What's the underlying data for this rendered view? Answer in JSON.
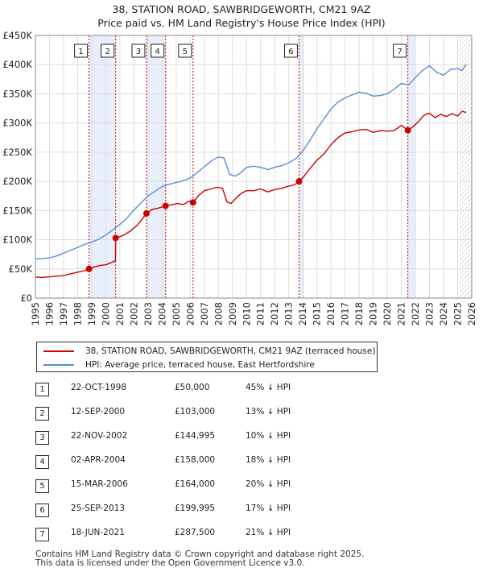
{
  "title_line1": "38, STATION ROAD, SAWBRIDGEWORTH, CM21 9AZ",
  "title_line2": "Price paid vs. HM Land Registry's House Price Index (HPI)",
  "colors": {
    "property": "#cc0000",
    "hpi": "#5b8fd0",
    "shade": "#e8effa",
    "marker_line": "#cc0000",
    "grid": "#dddddd"
  },
  "chart_data": {
    "type": "line",
    "title": "38, STATION ROAD, SAWBRIDGEWORTH, CM21 9AZ - Price paid vs. HM Land Registry's House Price Index (HPI)",
    "xlabel": "",
    "ylabel": "",
    "xlim": [
      1995,
      2026
    ],
    "ylim": [
      0,
      450000
    ],
    "grid": true,
    "y_ticks": [
      0,
      50000,
      100000,
      150000,
      200000,
      250000,
      300000,
      350000,
      400000,
      450000
    ],
    "y_tick_labels": [
      "£0",
      "£50K",
      "£100K",
      "£150K",
      "£200K",
      "£250K",
      "£300K",
      "£350K",
      "£400K",
      "£450K"
    ],
    "x_ticks": [
      1995,
      1996,
      1997,
      1998,
      1999,
      2000,
      2001,
      2002,
      2003,
      2004,
      2005,
      2006,
      2007,
      2008,
      2009,
      2010,
      2011,
      2012,
      2013,
      2014,
      2015,
      2016,
      2017,
      2018,
      2019,
      2020,
      2021,
      2022,
      2023,
      2024,
      2025,
      2026
    ],
    "x_tick_labels": [
      "1995",
      "1996",
      "1997",
      "1998",
      "1999",
      "2000",
      "2001",
      "2002",
      "2003",
      "2004",
      "2005",
      "2006",
      "2007",
      "2008",
      "2009",
      "2010",
      "2011",
      "2012",
      "2013",
      "2014",
      "2015",
      "2016",
      "2017",
      "2018",
      "2019",
      "2020",
      "2021",
      "2022",
      "2023",
      "2024",
      "2025",
      "2026"
    ],
    "shaded_ranges": [
      [
        1998.81,
        2000.7
      ],
      [
        2002.89,
        2004.25
      ],
      [
        2013.73,
        2014.1
      ],
      [
        2021.46,
        2022.0
      ]
    ],
    "hatch_from": 2025.1,
    "series": [
      {
        "name": "38, STATION ROAD, SAWBRIDGEWORTH, CM21 9AZ (terraced house)",
        "color": "#cc0000",
        "x": [
          1995.0,
          1995.5,
          1996.0,
          1996.5,
          1997.0,
          1997.5,
          1998.0,
          1998.5,
          1998.81,
          1999.2,
          1999.6,
          2000.0,
          2000.4,
          2000.69,
          2000.7,
          2001.2,
          2001.7,
          2002.2,
          2002.6,
          2002.89,
          2003.3,
          2003.7,
          2004.0,
          2004.25,
          2004.7,
          2005.1,
          2005.5,
          2005.9,
          2006.2,
          2006.6,
          2007.0,
          2007.5,
          2007.9,
          2008.3,
          2008.6,
          2008.9,
          2009.2,
          2009.6,
          2010.0,
          2010.5,
          2011.0,
          2011.5,
          2012.0,
          2012.5,
          2013.0,
          2013.4,
          2013.73,
          2014.1,
          2014.5,
          2015.0,
          2015.5,
          2016.0,
          2016.5,
          2017.0,
          2017.5,
          2018.0,
          2018.5,
          2019.0,
          2019.5,
          2020.0,
          2020.5,
          2021.0,
          2021.46,
          2021.8,
          2022.2,
          2022.6,
          2023.0,
          2023.4,
          2023.8,
          2024.2,
          2024.6,
          2025.0,
          2025.3,
          2025.6
        ],
        "values": [
          36000,
          35500,
          36500,
          37500,
          38500,
          41500,
          44500,
          47000,
          50000,
          53500,
          56000,
          57000,
          61000,
          64000,
          103000,
          107000,
          114000,
          124000,
          136000,
          144995,
          152000,
          154000,
          156000,
          158000,
          160000,
          162000,
          160000,
          166000,
          164000,
          176000,
          184000,
          187000,
          190000,
          188000,
          165000,
          162000,
          170000,
          179000,
          184000,
          184000,
          187000,
          182000,
          186000,
          188000,
          192000,
          194000,
          199995,
          209000,
          222000,
          236000,
          247000,
          263000,
          275000,
          283000,
          285000,
          288000,
          289000,
          284000,
          287000,
          286000,
          287000,
          296000,
          287500,
          293000,
          302000,
          313000,
          317000,
          309000,
          315000,
          311000,
          316000,
          312000,
          320000,
          318000
        ]
      },
      {
        "name": "HPI: Average price, terraced house, East Hertfordshire",
        "color": "#5b8fd0",
        "x": [
          1995.0,
          1995.5,
          1996.0,
          1996.5,
          1997.0,
          1997.5,
          1998.0,
          1998.5,
          1999.0,
          1999.5,
          2000.0,
          2000.5,
          2001.0,
          2001.5,
          2002.0,
          2002.5,
          2003.0,
          2003.5,
          2004.0,
          2004.5,
          2005.0,
          2005.5,
          2006.0,
          2006.5,
          2007.0,
          2007.5,
          2008.0,
          2008.4,
          2008.8,
          2009.2,
          2009.6,
          2010.0,
          2010.5,
          2011.0,
          2011.5,
          2012.0,
          2012.5,
          2013.0,
          2013.5,
          2014.0,
          2014.5,
          2015.0,
          2015.5,
          2016.0,
          2016.5,
          2017.0,
          2017.5,
          2018.0,
          2018.5,
          2019.0,
          2019.5,
          2020.0,
          2020.5,
          2021.0,
          2021.5,
          2022.0,
          2022.5,
          2023.0,
          2023.5,
          2024.0,
          2024.5,
          2025.0,
          2025.3,
          2025.6
        ],
        "values": [
          67000,
          67500,
          69000,
          72000,
          77000,
          82000,
          87000,
          92000,
          96000,
          101000,
          108000,
          117000,
          126000,
          137000,
          151000,
          163000,
          175000,
          183000,
          191000,
          195000,
          198000,
          201000,
          206000,
          215000,
          225000,
          235000,
          242000,
          240000,
          212000,
          209000,
          215000,
          224000,
          226000,
          224000,
          220000,
          224000,
          227000,
          232000,
          239000,
          252000,
          270000,
          290000,
          307000,
          324000,
          336000,
          343000,
          348000,
          353000,
          351000,
          346000,
          347000,
          350000,
          358000,
          368000,
          365000,
          378000,
          390000,
          398000,
          387000,
          382000,
          392000,
          393000,
          390000,
          400000
        ]
      }
    ],
    "transactions": [
      {
        "label": "1",
        "x": 1998.81,
        "value": 50000
      },
      {
        "label": "2",
        "x": 2000.7,
        "value": 103000
      },
      {
        "label": "3",
        "x": 2002.89,
        "value": 144995
      },
      {
        "label": "4",
        "x": 2004.25,
        "value": 158000
      },
      {
        "label": "5",
        "x": 2006.2,
        "value": 164000
      },
      {
        "label": "6",
        "x": 2013.73,
        "value": 199995
      },
      {
        "label": "7",
        "x": 2021.46,
        "value": 287500
      }
    ]
  },
  "legend": {
    "property": "38, STATION ROAD, SAWBRIDGEWORTH, CM21 9AZ (terraced house)",
    "hpi": "HPI: Average price, terraced house, East Hertfordshire"
  },
  "table": [
    {
      "num": "1",
      "date": "22-OCT-1998",
      "price": "£50,000",
      "hpi": "45% ↓ HPI"
    },
    {
      "num": "2",
      "date": "12-SEP-2000",
      "price": "£103,000",
      "hpi": "13% ↓ HPI"
    },
    {
      "num": "3",
      "date": "22-NOV-2002",
      "price": "£144,995",
      "hpi": "10% ↓ HPI"
    },
    {
      "num": "4",
      "date": "02-APR-2004",
      "price": "£158,000",
      "hpi": "18% ↓ HPI"
    },
    {
      "num": "5",
      "date": "15-MAR-2006",
      "price": "£164,000",
      "hpi": "20% ↓ HPI"
    },
    {
      "num": "6",
      "date": "25-SEP-2013",
      "price": "£199,995",
      "hpi": "17% ↓ HPI"
    },
    {
      "num": "7",
      "date": "18-JUN-2021",
      "price": "£287,500",
      "hpi": "21% ↓ HPI"
    }
  ],
  "footer": {
    "line1": "Contains HM Land Registry data © Crown copyright and database right 2025.",
    "line2": "This data is licensed under the Open Government Licence v3.0."
  }
}
